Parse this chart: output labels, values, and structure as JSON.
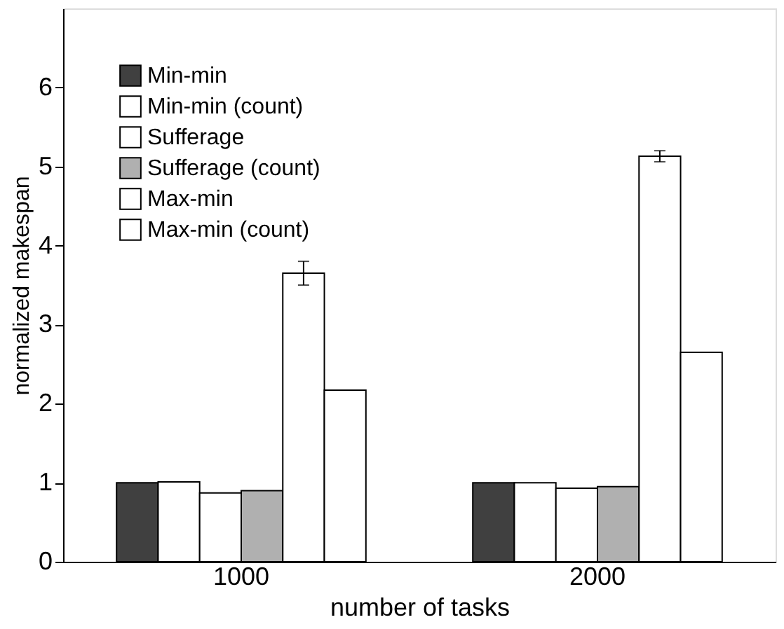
{
  "chart_data": {
    "type": "bar",
    "xlabel": "number of tasks",
    "ylabel": "normalized makespan",
    "categories": [
      "1000",
      "2000"
    ],
    "series": [
      {
        "name": "Min-min",
        "color": "#404040",
        "values": [
          1.0,
          1.0
        ]
      },
      {
        "name": "Min-min (count)",
        "color": "#ffffff",
        "values": [
          1.01,
          1.0
        ]
      },
      {
        "name": "Sufferage",
        "color": "#ffffff",
        "values": [
          0.87,
          0.93
        ]
      },
      {
        "name": "Sufferage (count)",
        "color": "#b0b0b0",
        "values": [
          0.9,
          0.95
        ]
      },
      {
        "name": "Max-min",
        "color": "#ffffff",
        "values": [
          3.65,
          5.13
        ],
        "errors": [
          0.15,
          0.07
        ]
      },
      {
        "name": "Max-min (count)",
        "color": "#ffffff",
        "values": [
          2.17,
          2.65
        ]
      }
    ],
    "ylim": [
      0,
      7
    ],
    "yticks": [
      0,
      1,
      2,
      3,
      4,
      5,
      6
    ],
    "grid": false,
    "legend": "top left"
  }
}
